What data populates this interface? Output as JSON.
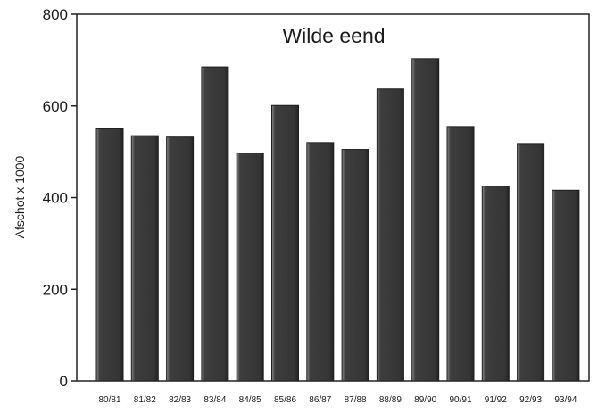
{
  "chart_data": {
    "type": "bar",
    "title": "Wilde eend",
    "xlabel": "",
    "ylabel": "Afschot x 1000",
    "ylim": [
      0,
      800
    ],
    "yticks": [
      0,
      200,
      400,
      600,
      800
    ],
    "grid": false,
    "legend": "none",
    "categories": [
      "80/81",
      "81/82",
      "82/83",
      "83/84",
      "84/85",
      "85/86",
      "86/87",
      "87/88",
      "88/89",
      "89/90",
      "90/91",
      "91/92",
      "92/93",
      "93/94"
    ],
    "values": [
      550,
      535,
      532,
      685,
      497,
      601,
      520,
      505,
      637,
      703,
      555,
      425,
      518,
      416
    ],
    "colors": {
      "bar": "#3e3e3e",
      "bar_highlight": "#8a8a8a",
      "axis": "#222222"
    }
  }
}
